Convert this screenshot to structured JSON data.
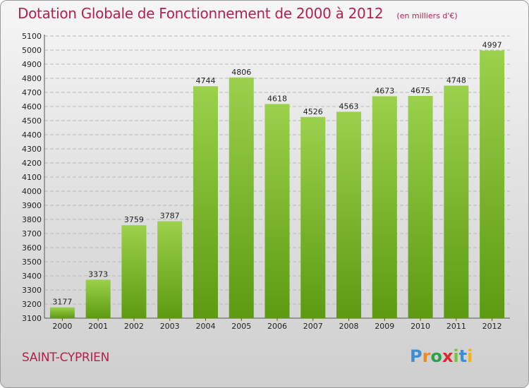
{
  "header": {
    "title": "Dotation Globale de Fonctionnement de 2000 à 2012",
    "unit_note": "(en milliers d'€)"
  },
  "commune": "SAINT-CYPRIEN",
  "logo": {
    "text": "Proxiti",
    "letters": [
      "P",
      "r",
      "o",
      "x",
      "i",
      "t",
      "i"
    ]
  },
  "chart_data": {
    "type": "bar",
    "categories": [
      "2000",
      "2001",
      "2002",
      "2003",
      "2004",
      "2005",
      "2006",
      "2007",
      "2008",
      "2009",
      "2010",
      "2011",
      "2012"
    ],
    "values": [
      3177,
      3373,
      3759,
      3787,
      4744,
      4806,
      4618,
      4526,
      4563,
      4673,
      4675,
      4748,
      4997
    ],
    "data_labels": [
      "3177",
      "3373",
      "3759",
      "3787",
      "4744",
      "4806",
      "4618",
      "4526",
      "4563",
      "4673",
      "4675",
      "4748",
      "4997"
    ],
    "title": "Dotation Globale de Fonctionnement de 2000 à 2012",
    "xlabel": "",
    "ylabel": "",
    "ylim": [
      3100,
      5100
    ],
    "yticks": [
      3100,
      3200,
      3300,
      3400,
      3500,
      3600,
      3700,
      3800,
      3900,
      4000,
      4100,
      4200,
      4300,
      4400,
      4500,
      4600,
      4700,
      4800,
      4900,
      5000,
      5100
    ],
    "grid": true,
    "bar_color_top": "#9bd14c",
    "bar_color_bottom": "#5d9a12"
  }
}
